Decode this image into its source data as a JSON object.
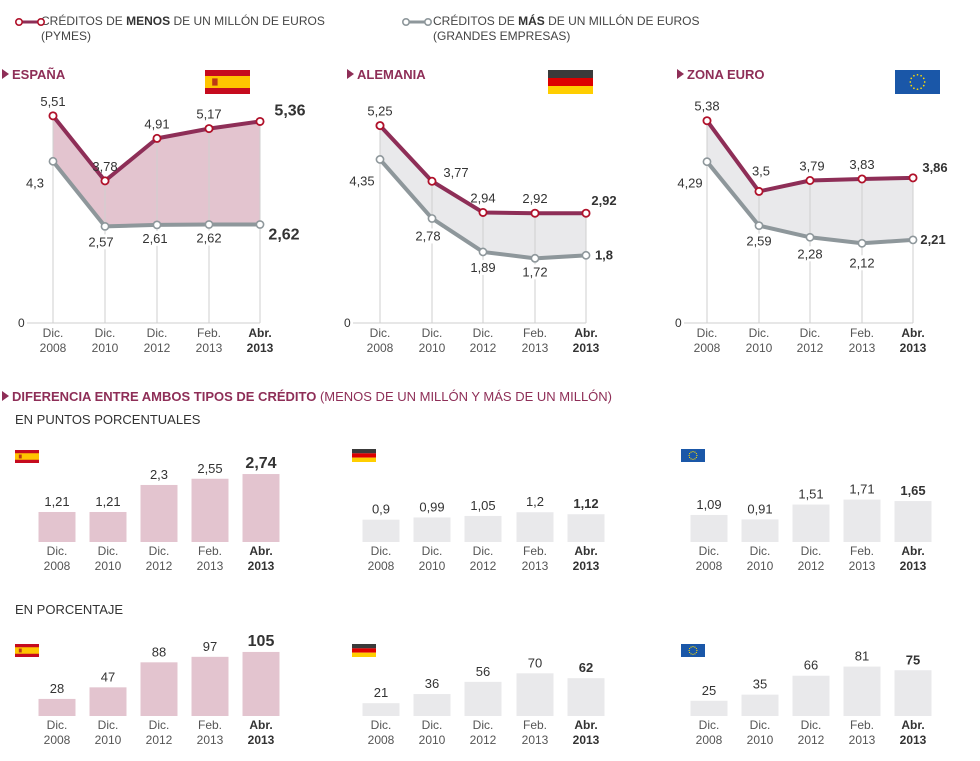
{
  "legend": {
    "menos": {
      "prefix": "CRÉDITOS DE ",
      "bold": "MENOS",
      "suffix": " DE UN MILLÓN DE EUROS",
      "line2": "(PYMES)",
      "color": "#8e2e57"
    },
    "mas": {
      "prefix": "CRÉDITOS DE ",
      "bold": "MÁS",
      "suffix": " DE UN MILLÓN DE EUROS",
      "line2": "(GRANDES EMPRESAS)",
      "color": "#8e979b"
    }
  },
  "colors": {
    "accent": "#8e2e57",
    "pyme_line": "#8e2e57",
    "pyme_marker": "#b0112a",
    "large_line": "#8e979b",
    "fill_spain": "#e3c4cf",
    "fill_other": "#e9e9eb",
    "grid": "#cfcfcf"
  },
  "chart_data": [
    {
      "type": "line",
      "title": "ESPAÑA",
      "flag": "spain-flag",
      "categories": [
        [
          "Dic.",
          "2008"
        ],
        [
          "Dic.",
          "2010"
        ],
        [
          "Dic.",
          "2012"
        ],
        [
          "Feb.",
          "2013"
        ],
        [
          "Abr.",
          "2013"
        ]
      ],
      "zero_label": "0",
      "ylim": [
        0,
        5.6
      ],
      "series": [
        {
          "name": "Créditos de menos de un millón de euros (pymes)",
          "values": [
            5.51,
            3.78,
            4.91,
            5.17,
            5.36
          ],
          "labels": [
            "5,51",
            "3,78",
            "4,91",
            "5,17",
            "5,36"
          ]
        },
        {
          "name": "Créditos de más de un millón de euros (grandes empresas)",
          "values": [
            4.3,
            2.57,
            2.61,
            2.62,
            2.62
          ],
          "labels": [
            "4,3",
            "2,57",
            "2,61",
            "2,62",
            "2,62"
          ]
        }
      ]
    },
    {
      "type": "line",
      "title": "ALEMANIA",
      "flag": "germany-flag",
      "categories": [
        [
          "Dic.",
          "2008"
        ],
        [
          "Dic.",
          "2010"
        ],
        [
          "Dic.",
          "2012"
        ],
        [
          "Feb.",
          "2013"
        ],
        [
          "Abr.",
          "2013"
        ]
      ],
      "zero_label": "0",
      "ylim": [
        0,
        5.6
      ],
      "series": [
        {
          "name": "Créditos de menos de un millón de euros (pymes)",
          "values": [
            5.25,
            3.77,
            2.94,
            2.92,
            2.92
          ],
          "labels": [
            "5,25",
            "3,77",
            "2,94",
            "2,92",
            "2,92"
          ]
        },
        {
          "name": "Créditos de más de un millón de euros (grandes empresas)",
          "values": [
            4.35,
            2.78,
            1.89,
            1.72,
            1.8
          ],
          "labels": [
            "4,35",
            "2,78",
            "1,89",
            "1,72",
            "1,8"
          ]
        }
      ]
    },
    {
      "type": "line",
      "title": "ZONA EURO",
      "flag": "eu-flag",
      "categories": [
        [
          "Dic.",
          "2008"
        ],
        [
          "Dic.",
          "2010"
        ],
        [
          "Dic.",
          "2012"
        ],
        [
          "Feb.",
          "2013"
        ],
        [
          "Abr.",
          "2013"
        ]
      ],
      "zero_label": "0",
      "ylim": [
        0,
        5.6
      ],
      "series": [
        {
          "name": "Créditos de menos de un millón de euros (pymes)",
          "values": [
            5.38,
            3.5,
            3.79,
            3.83,
            3.86
          ],
          "labels": [
            "5,38",
            "3,5",
            "3,79",
            "3,83",
            "3,86"
          ]
        },
        {
          "name": "Créditos de más de un millón de euros (grandes empresas)",
          "values": [
            4.29,
            2.59,
            2.28,
            2.12,
            2.21
          ],
          "labels": [
            "4,29",
            "2,59",
            "2,28",
            "2,12",
            "2,21"
          ]
        }
      ]
    },
    {
      "type": "bar",
      "group": "puntos",
      "country": "España",
      "flag": "spain-flag",
      "categories": [
        [
          "Dic.",
          "2008"
        ],
        [
          "Dic.",
          "2010"
        ],
        [
          "Dic.",
          "2012"
        ],
        [
          "Feb.",
          "2013"
        ],
        [
          "Abr.",
          "2013"
        ]
      ],
      "values": [
        1.21,
        1.21,
        2.3,
        2.55,
        2.74
      ],
      "labels": [
        "1,21",
        "1,21",
        "2,3",
        "2,55",
        "2,74"
      ]
    },
    {
      "type": "bar",
      "group": "puntos",
      "country": "Alemania",
      "flag": "germany-flag",
      "categories": [
        [
          "Dic.",
          "2008"
        ],
        [
          "Dic.",
          "2010"
        ],
        [
          "Dic.",
          "2012"
        ],
        [
          "Feb.",
          "2013"
        ],
        [
          "Abr.",
          "2013"
        ]
      ],
      "values": [
        0.9,
        0.99,
        1.05,
        1.2,
        1.12
      ],
      "labels": [
        "0,9",
        "0,99",
        "1,05",
        "1,2",
        "1,12"
      ]
    },
    {
      "type": "bar",
      "group": "puntos",
      "country": "Zona Euro",
      "flag": "eu-flag",
      "categories": [
        [
          "Dic.",
          "2008"
        ],
        [
          "Dic.",
          "2010"
        ],
        [
          "Dic.",
          "2012"
        ],
        [
          "Feb.",
          "2013"
        ],
        [
          "Abr.",
          "2013"
        ]
      ],
      "values": [
        1.09,
        0.91,
        1.51,
        1.71,
        1.65
      ],
      "labels": [
        "1,09",
        "0,91",
        "1,51",
        "1,71",
        "1,65"
      ]
    },
    {
      "type": "bar",
      "group": "porcentaje",
      "country": "España",
      "flag": "spain-flag",
      "categories": [
        [
          "Dic.",
          "2008"
        ],
        [
          "Dic.",
          "2010"
        ],
        [
          "Dic.",
          "2012"
        ],
        [
          "Feb.",
          "2013"
        ],
        [
          "Abr.",
          "2013"
        ]
      ],
      "values": [
        28,
        47,
        88,
        97,
        105
      ],
      "labels": [
        "28",
        "47",
        "88",
        "97",
        "105"
      ]
    },
    {
      "type": "bar",
      "group": "porcentaje",
      "country": "Alemania",
      "flag": "germany-flag",
      "categories": [
        [
          "Dic.",
          "2008"
        ],
        [
          "Dic.",
          "2010"
        ],
        [
          "Dic.",
          "2012"
        ],
        [
          "Feb.",
          "2013"
        ],
        [
          "Abr.",
          "2013"
        ]
      ],
      "values": [
        21,
        36,
        56,
        70,
        62
      ],
      "labels": [
        "21",
        "36",
        "56",
        "70",
        "62"
      ]
    },
    {
      "type": "bar",
      "group": "porcentaje",
      "country": "Zona Euro",
      "flag": "eu-flag",
      "categories": [
        [
          "Dic.",
          "2008"
        ],
        [
          "Dic.",
          "2010"
        ],
        [
          "Dic.",
          "2012"
        ],
        [
          "Feb.",
          "2013"
        ],
        [
          "Abr.",
          "2013"
        ]
      ],
      "values": [
        25,
        35,
        66,
        81,
        75
      ],
      "labels": [
        "25",
        "35",
        "66",
        "81",
        "75"
      ]
    }
  ],
  "diff_section": {
    "title_bold": "DIFERENCIA ENTRE AMBOS TIPOS DE CRÉDITO",
    "title_light": " (MENOS DE UN MILLÓN Y MÁS DE UN MILLÓN)",
    "sub_puntos": "EN PUNTOS PORCENTUALES",
    "sub_porcentaje": "EN PORCENTAJE"
  }
}
